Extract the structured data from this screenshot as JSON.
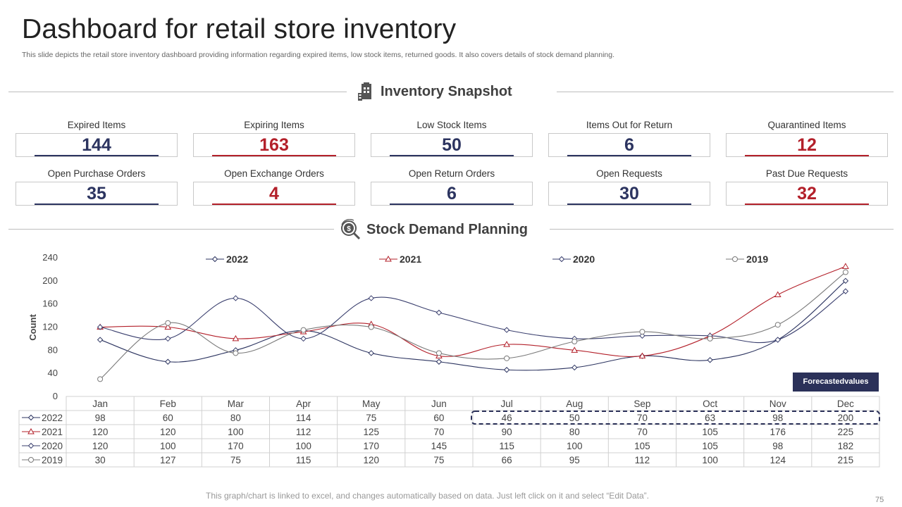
{
  "title": "Dashboard for retail store inventory",
  "subtitle": "This slide depicts the retail store inventory dashboard providing information regarding expired items, low stock items, returned goods. It also covers details of stock demand planning.",
  "snapshot": {
    "heading": "Inventory Snapshot",
    "icon": "clipboard-building-icon"
  },
  "kpis": [
    {
      "label": "Expired Items",
      "value": "144",
      "color": "navy"
    },
    {
      "label": "Expiring Items",
      "value": "163",
      "color": "red"
    },
    {
      "label": "Low Stock Items",
      "value": "50",
      "color": "navy"
    },
    {
      "label": "Items Out for Return",
      "value": "6",
      "color": "navy"
    },
    {
      "label": "Quarantined Items",
      "value": "12",
      "color": "red"
    },
    {
      "label": "Open Purchase Orders",
      "value": "35",
      "color": "navy"
    },
    {
      "label": "Open Exchange Orders",
      "value": "4",
      "color": "red"
    },
    {
      "label": "Open Return Orders",
      "value": "6",
      "color": "navy"
    },
    {
      "label": "Open Requests",
      "value": "30",
      "color": "navy"
    },
    {
      "label": "Past Due Requests",
      "value": "32",
      "color": "red"
    }
  ],
  "demand": {
    "heading": "Stock Demand Planning",
    "icon": "money-search-icon"
  },
  "forecast_label": "Forecastedvalues",
  "footer": "This graph/chart is linked to excel, and changes automatically based on data. Just left click on it and select “Edit Data”.",
  "page_number": "75",
  "colors": {
    "navy": "#2c3460",
    "red": "#b3202a",
    "gray": "#7a7a7a",
    "forecast_bg": "#2b3159"
  },
  "chart_data": {
    "type": "line",
    "ylabel": "Count",
    "ylim": [
      0,
      240
    ],
    "yticks": [
      0,
      40,
      80,
      120,
      160,
      200,
      240
    ],
    "categories": [
      "Jan",
      "Feb",
      "Mar",
      "Apr",
      "May",
      "Jun",
      "Jul",
      "Aug",
      "Sep",
      "Oct",
      "Nov",
      "Dec"
    ],
    "series": [
      {
        "name": "2022",
        "marker": "diamond",
        "color": "#2c3460",
        "values": [
          98,
          60,
          80,
          114,
          75,
          60,
          46,
          50,
          70,
          63,
          98,
          200
        ]
      },
      {
        "name": "2021",
        "marker": "triangle",
        "color": "#b3202a",
        "values": [
          120,
          120,
          100,
          112,
          125,
          70,
          90,
          80,
          70,
          105,
          176,
          225
        ]
      },
      {
        "name": "2020",
        "marker": "diamond",
        "color": "#3a3f6e",
        "values": [
          120,
          100,
          170,
          100,
          170,
          145,
          115,
          100,
          105,
          105,
          98,
          182
        ]
      },
      {
        "name": "2019",
        "marker": "circle",
        "color": "#7a7a7a",
        "values": [
          30,
          127,
          75,
          115,
          120,
          75,
          66,
          95,
          112,
          100,
          124,
          215
        ]
      }
    ],
    "forecast_months": [
      "Jul",
      "Aug",
      "Sep",
      "Oct",
      "Nov",
      "Dec"
    ]
  }
}
